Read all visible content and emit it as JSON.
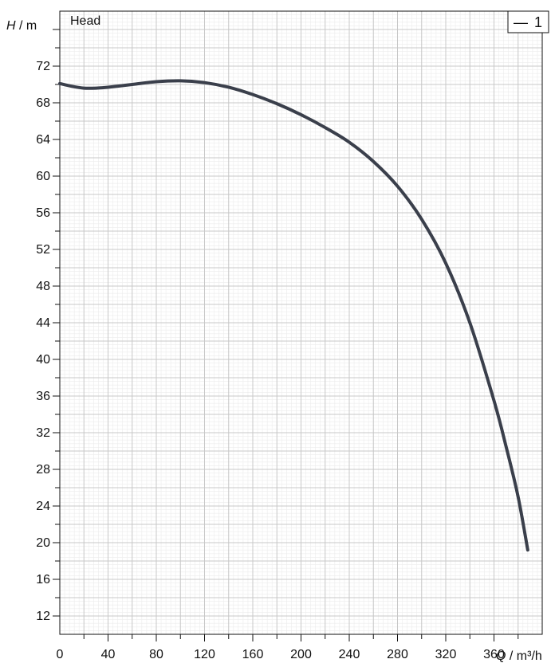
{
  "chart_data": {
    "type": "line",
    "title": "Head",
    "ylabel": {
      "symbol": "H",
      "unit": " / m"
    },
    "xlabel": {
      "symbol": "Q",
      "unit": " / m³/h"
    },
    "xlim": [
      0,
      400
    ],
    "ylim": [
      10,
      78
    ],
    "x_ticks": [
      0,
      40,
      80,
      120,
      160,
      200,
      240,
      280,
      320,
      360
    ],
    "y_ticks": [
      12,
      16,
      20,
      24,
      28,
      32,
      36,
      40,
      44,
      48,
      52,
      56,
      60,
      64,
      68,
      72
    ],
    "grid": true,
    "legend": {
      "placement": "top-right",
      "entries": [
        {
          "symbol": "—",
          "label": "1"
        }
      ]
    },
    "colors": {
      "series": "#3a3f4b",
      "grid": "#c8c8c8",
      "minor_grid": "#ececec",
      "axis": "#111111"
    },
    "series": [
      {
        "name": "1",
        "x": [
          0,
          10,
          20,
          30,
          40,
          60,
          80,
          100,
          120,
          140,
          160,
          180,
          200,
          220,
          240,
          260,
          280,
          300,
          320,
          340,
          360,
          370,
          380,
          388
        ],
        "y": [
          70.1,
          69.8,
          69.6,
          69.6,
          69.7,
          70.0,
          70.3,
          70.4,
          70.2,
          69.7,
          68.9,
          67.9,
          66.7,
          65.3,
          63.7,
          61.6,
          58.9,
          55.3,
          50.5,
          44.0,
          35.5,
          30.5,
          25.0,
          19.2
        ]
      }
    ]
  }
}
